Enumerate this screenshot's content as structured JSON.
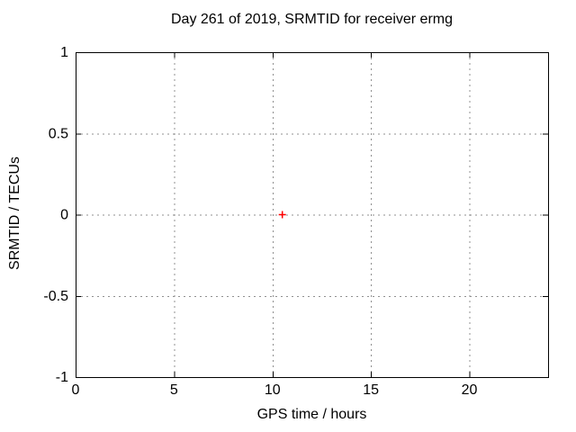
{
  "window": {
    "background": "#ffffff"
  },
  "chart_data": {
    "type": "scatter",
    "title": "Day 261 of 2019, SRMTID for receiver ermg",
    "xlabel": "GPS time / hours",
    "ylabel": "SRMTID / TECUs",
    "xlim": [
      0,
      24
    ],
    "ylim": [
      -1,
      1
    ],
    "xticks": [
      0,
      5,
      10,
      15,
      20
    ],
    "xtick_labels": [
      "0",
      "5",
      "10",
      "15",
      "20"
    ],
    "yticks": [
      -1,
      -0.5,
      0,
      0.5,
      1
    ],
    "ytick_labels": [
      "-1",
      "-0.5",
      "0",
      "0.5",
      "1"
    ],
    "grid": true,
    "legend": "none",
    "series": [
      {
        "name": "SRMTID",
        "marker": "plus",
        "color": "#ff0000",
        "points": [
          [
            10.5,
            0.0
          ]
        ]
      }
    ],
    "colors": {
      "axis": "#000000",
      "grid": "#909090",
      "text": "#000000",
      "marker": "#ff0000",
      "background": "#ffffff"
    }
  }
}
